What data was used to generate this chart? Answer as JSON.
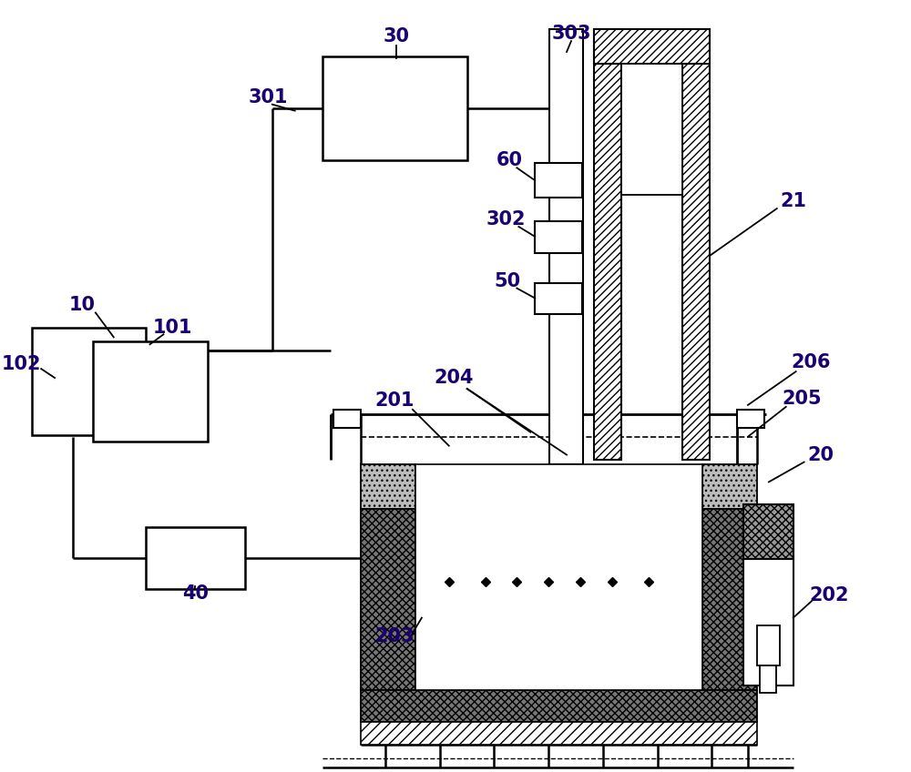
{
  "bg": "#ffffff",
  "lc": "#000000",
  "label_color": "#1a0070",
  "lw": 1.8,
  "lfs": 15,
  "figsize": [
    10.0,
    8.48
  ]
}
